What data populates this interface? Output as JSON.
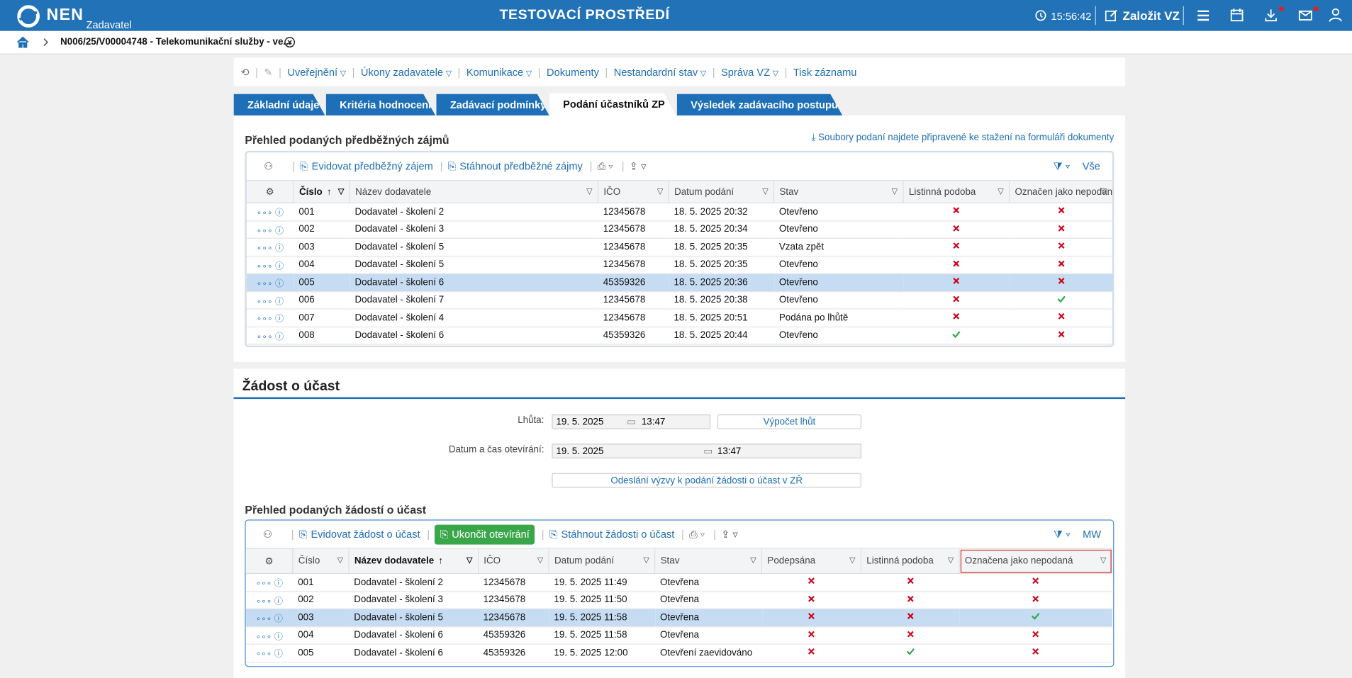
{
  "header": {
    "logo": "NEN",
    "subtitle": "Zadavatel",
    "environment": "TESTOVACÍ PROSTŘEDÍ",
    "time": "15:56:42",
    "create": "Založit VZ"
  },
  "breadcrumb": {
    "title": "N006/25/V00004748 - Telekomunikační služby - ve..."
  },
  "toolbar": [
    "Uveřejnění",
    "Úkony zadavatele",
    "Komunikace",
    "Dokumenty",
    "Nestandardní stav",
    "Správa VZ",
    "Tisk záznamu"
  ],
  "tabs": {
    "items": [
      "Základní údaje",
      "Kritéria hodnocení",
      "Zadávací podmínky",
      "Podání účastníků ZP",
      "Výsledek zadávacího postupu"
    ],
    "active": 3
  },
  "section1": {
    "title": "Přehled podaných předběžných zájmů",
    "note": "Soubory podaní najdete připravené ke stažení na formuláři dokumenty",
    "table": {
      "actions": [
        "Evidovat předběžný zájem",
        "Stáhnout předběžné zájmy"
      ],
      "filter": "Vše",
      "columns": [
        "Číslo",
        "Název dodavatele",
        "IČO",
        "Datum podání",
        "Stav",
        "Listinná podoba",
        "Označen jako nepodaný"
      ],
      "sorted_column": 0,
      "rows": [
        {
          "cells": [
            "001",
            "Dodavatel - školení 2",
            "12345678",
            "18. 5. 2025 20:32",
            "Otevřeno"
          ],
          "checks": [
            false,
            false
          ]
        },
        {
          "cells": [
            "002",
            "Dodavatel - školení 3",
            "12345678",
            "18. 5. 2025 20:34",
            "Otevřeno"
          ],
          "checks": [
            false,
            false
          ]
        },
        {
          "cells": [
            "003",
            "Dodavatel - školení 5",
            "12345678",
            "18. 5. 2025 20:35",
            "Vzata zpět"
          ],
          "checks": [
            false,
            false
          ]
        },
        {
          "cells": [
            "004",
            "Dodavatel - školení 5",
            "12345678",
            "18. 5. 2025 20:35",
            "Otevřeno"
          ],
          "checks": [
            false,
            false
          ]
        },
        {
          "cells": [
            "005",
            "Dodavatel - školení 6",
            "45359326",
            "18. 5. 2025 20:36",
            "Otevřeno"
          ],
          "checks": [
            false,
            false
          ],
          "selected": true
        },
        {
          "cells": [
            "006",
            "Dodavatel - školení 7",
            "12345678",
            "18. 5. 2025 20:38",
            "Otevřeno"
          ],
          "checks": [
            false,
            true
          ]
        },
        {
          "cells": [
            "007",
            "Dodavatel - školení 4",
            "12345678",
            "18. 5. 2025 20:51",
            "Podána po lhůtě"
          ],
          "checks": [
            false,
            false
          ]
        },
        {
          "cells": [
            "008",
            "Dodavatel - školení 6",
            "45359326",
            "18. 5. 2025 20:44",
            "Otevřeno"
          ],
          "checks": [
            true,
            false
          ]
        }
      ]
    }
  },
  "section2": {
    "title": "Žádost o účast",
    "deadline": {
      "label": "Lhůta:",
      "date": "19. 5. 2025",
      "time": "13:47",
      "button": "Výpočet lhůt"
    },
    "opening": {
      "label": "Datum a čas otevírání:",
      "date": "19. 5. 2025",
      "time": "13:47"
    },
    "send_button": "Odeslání výzvy k podání žádosti o účast v ZŘ",
    "table_title": "Přehled podaných žádostí o účast",
    "table": {
      "actions": [
        "Evidovat žádost o účast",
        "Ukončit otevírání",
        "Stáhnout žádosti o účast"
      ],
      "filter": "MW",
      "columns": [
        "Číslo",
        "Název dodavatele",
        "IČO",
        "Datum podání",
        "Stav",
        "Podepsána",
        "Listinná podoba",
        "Označena jako nepodaná"
      ],
      "sorted_column": 1,
      "highlighted_column": 7,
      "rows": [
        {
          "cells": [
            "001",
            "Dodavatel - školení 2",
            "12345678",
            "19. 5. 2025 11:49",
            "Otevřena"
          ],
          "checks": [
            false,
            false,
            false
          ]
        },
        {
          "cells": [
            "002",
            "Dodavatel - školení 3",
            "12345678",
            "19. 5. 2025 11:50",
            "Otevřena"
          ],
          "checks": [
            false,
            false,
            false
          ]
        },
        {
          "cells": [
            "003",
            "Dodavatel - školení 5",
            "12345678",
            "19. 5. 2025 11:58",
            "Otevřena"
          ],
          "checks": [
            false,
            false,
            true
          ],
          "selected": true
        },
        {
          "cells": [
            "004",
            "Dodavatel - školení 6",
            "45359326",
            "19. 5. 2025 11:58",
            "Otevřena"
          ],
          "checks": [
            false,
            false,
            false
          ]
        },
        {
          "cells": [
            "005",
            "Dodavatel - školení 6",
            "45359326",
            "19. 5. 2025 12:00",
            "Otevření zaevidováno"
          ],
          "checks": [
            false,
            true,
            false
          ]
        }
      ]
    }
  }
}
